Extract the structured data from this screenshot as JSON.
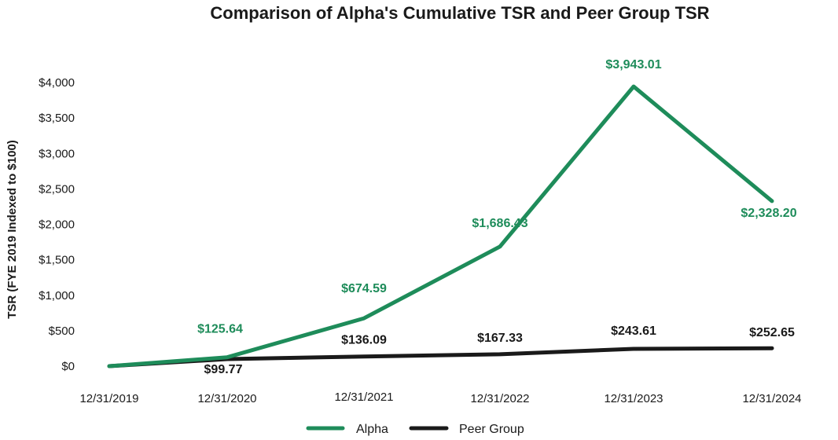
{
  "chart_data": {
    "type": "line",
    "title": "Comparison of Alpha's Cumulative TSR and Peer Group TSR",
    "xlabel": "",
    "ylabel": "TSR (FYE 2019 Indexed to $100)",
    "categories": [
      "12/31/2019",
      "12/31/2020",
      "12/31/2021",
      "12/31/2022",
      "12/31/2023",
      "12/31/2024"
    ],
    "ylim": [
      0,
      4000
    ],
    "yticks": [
      0,
      500,
      1000,
      1500,
      2000,
      2500,
      3000,
      3500,
      4000
    ],
    "ytick_labels": [
      "$0",
      "$500",
      "$1,000",
      "$1,500",
      "$2,000",
      "$2,500",
      "$3,000",
      "$3,500",
      "$4,000"
    ],
    "grid": false,
    "legend_position": "bottom-center",
    "series": [
      {
        "name": "Alpha",
        "color": "#1e8c5a",
        "values": [
          0,
          125.64,
          674.59,
          1686.43,
          3943.01,
          2328.2
        ],
        "labels": [
          "",
          "$125.64",
          "$674.59",
          "$1,686.43",
          "$3,943.01",
          "$2,328.20"
        ]
      },
      {
        "name": "Peer Group",
        "color": "#1a1a1a",
        "values": [
          0,
          99.77,
          136.09,
          167.33,
          243.61,
          252.65
        ],
        "labels": [
          "",
          "$99.77",
          "$136.09",
          "$167.33",
          "$243.61",
          "$252.65"
        ]
      }
    ]
  }
}
